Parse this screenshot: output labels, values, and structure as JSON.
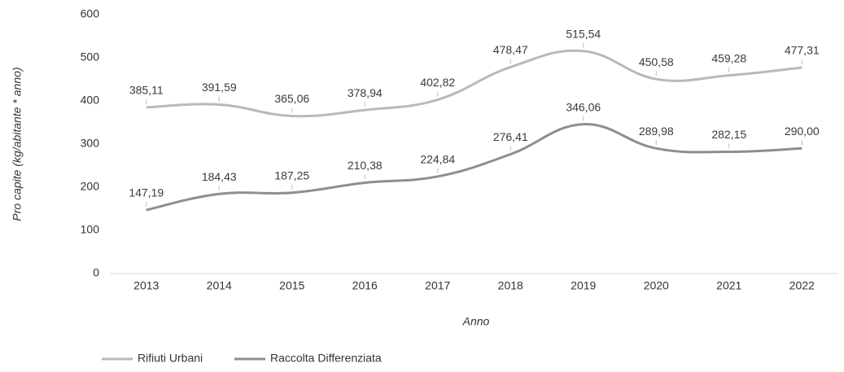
{
  "chart_data": {
    "type": "line",
    "x_label": "Anno",
    "y_label": "Pro capite (kg/abitante * anno)",
    "categories": [
      "2013",
      "2014",
      "2015",
      "2016",
      "2017",
      "2018",
      "2019",
      "2020",
      "2021",
      "2022"
    ],
    "series": [
      {
        "name": "Rifiuti Urbani",
        "color": "#b9b9b9",
        "values": [
          385.11,
          391.59,
          365.06,
          378.94,
          402.82,
          478.47,
          515.54,
          450.58,
          459.28,
          477.31
        ],
        "value_labels": [
          "385,11",
          "391,59",
          "365,06",
          "378,94",
          "402,82",
          "478,47",
          "515,54",
          "450,58",
          "459,28",
          "477,31"
        ]
      },
      {
        "name": "Raccolta Differenziata",
        "color": "#8e8e8e",
        "values": [
          147.19,
          184.43,
          187.25,
          210.38,
          224.84,
          276.41,
          346.06,
          289.98,
          282.15,
          290.0
        ],
        "value_labels": [
          "147,19",
          "184,43",
          "187,25",
          "210,38",
          "224,84",
          "276,41",
          "346,06",
          "289,98",
          "282,15",
          "290,00"
        ]
      }
    ],
    "ylim": [
      0,
      600
    ],
    "yticks": [
      0,
      100,
      200,
      300,
      400,
      500,
      600
    ],
    "grid": false,
    "legend": "bottom-left"
  }
}
